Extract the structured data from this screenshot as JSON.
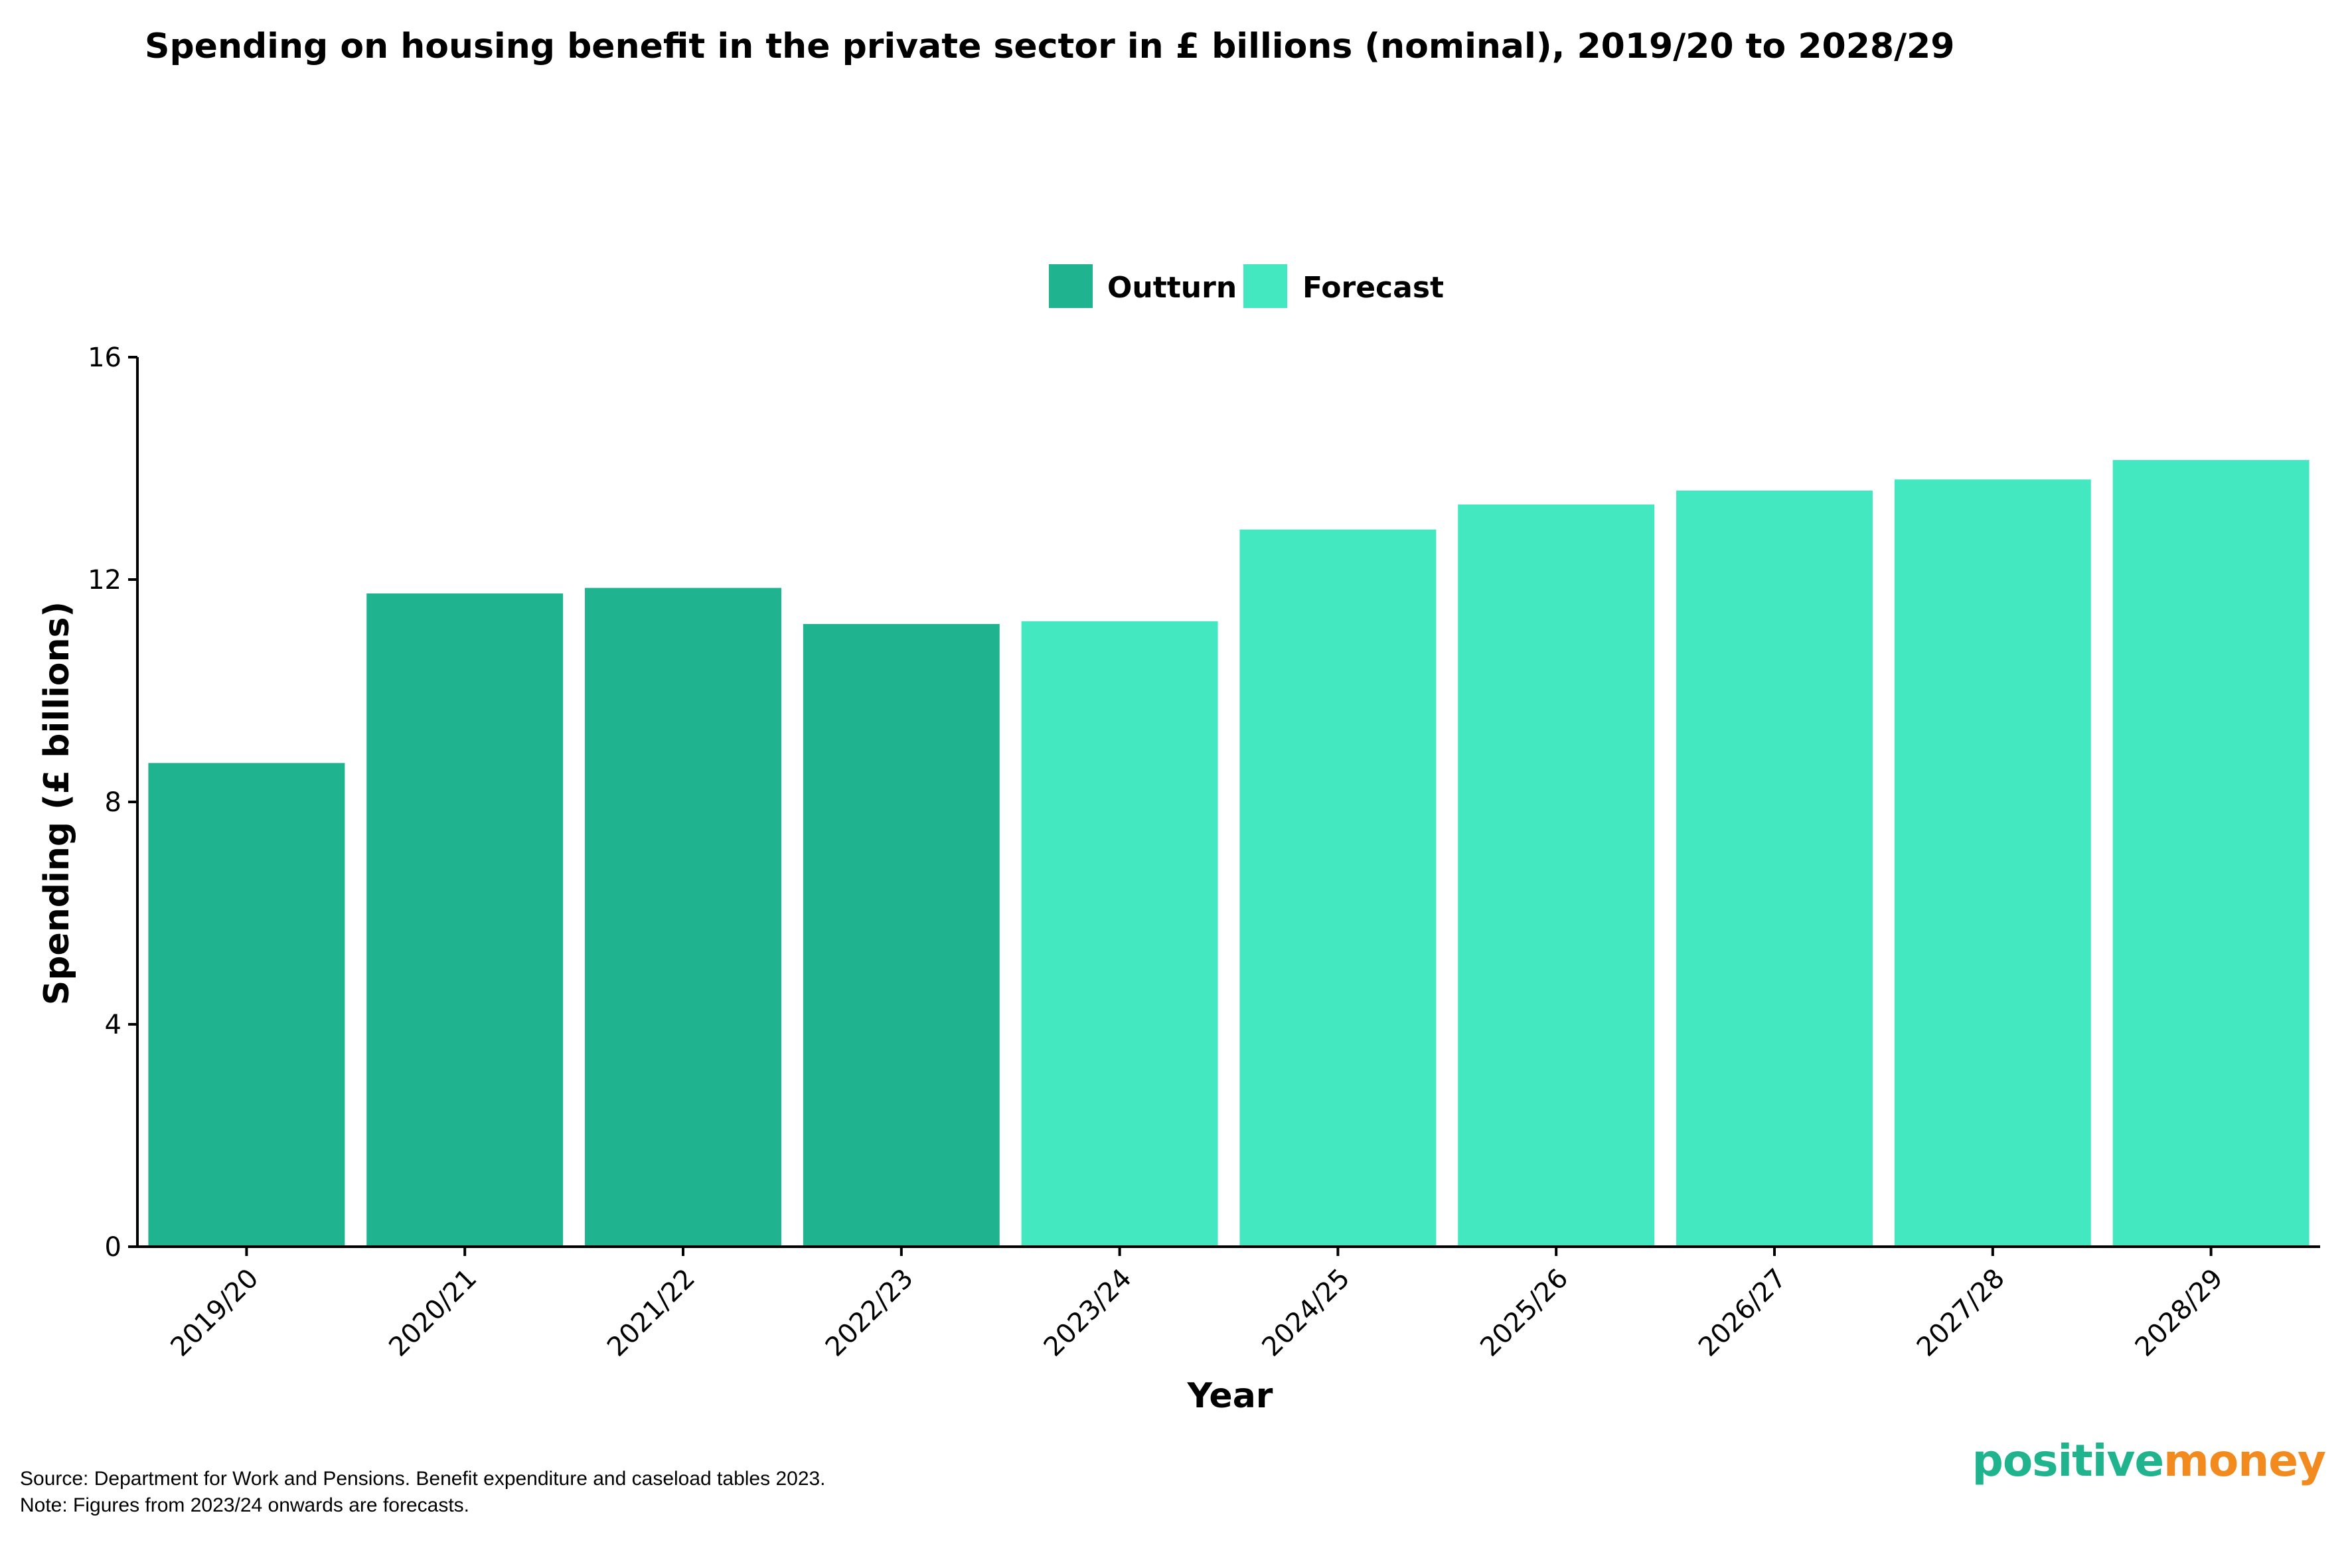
{
  "title": "Spending on housing benefit in the private sector in £ billions (nominal), 2019/20 to 2028/29",
  "footnotes": {
    "source": "Source: Department for Work and Pensions. Benefit expenditure and caseload tables 2023.",
    "note": "Note: Figures from 2023/24 onwards are forecasts."
  },
  "brand": {
    "part1": "positive",
    "part2": "money"
  },
  "colors": {
    "outturn": "#20b38f",
    "forecast": "#43e8c1",
    "brand_green": "#1fb38e",
    "brand_orange": "#f28a1e"
  },
  "chart_data": {
    "type": "bar",
    "title": "Spending on housing benefit in the private sector in £ billions (nominal), 2019/20 to 2028/29",
    "xlabel": "Year",
    "ylabel": "Spending (£ billions)",
    "ylim": [
      0,
      16
    ],
    "yticks": [
      0,
      4,
      8,
      12,
      16
    ],
    "categories": [
      "2019/20",
      "2020/21",
      "2021/22",
      "2022/23",
      "2023/24",
      "2024/25",
      "2025/26",
      "2026/27",
      "2027/28",
      "2028/29"
    ],
    "values": [
      8.7,
      11.75,
      11.85,
      11.2,
      11.25,
      12.9,
      13.35,
      13.6,
      13.8,
      14.15
    ],
    "groups": [
      "Outturn",
      "Outturn",
      "Outturn",
      "Outturn",
      "Forecast",
      "Forecast",
      "Forecast",
      "Forecast",
      "Forecast",
      "Forecast"
    ],
    "legend": [
      {
        "name": "Outturn",
        "color": "#20b38f"
      },
      {
        "name": "Forecast",
        "color": "#43e8c1"
      }
    ],
    "legend_position": "top-center",
    "grid": false
  }
}
